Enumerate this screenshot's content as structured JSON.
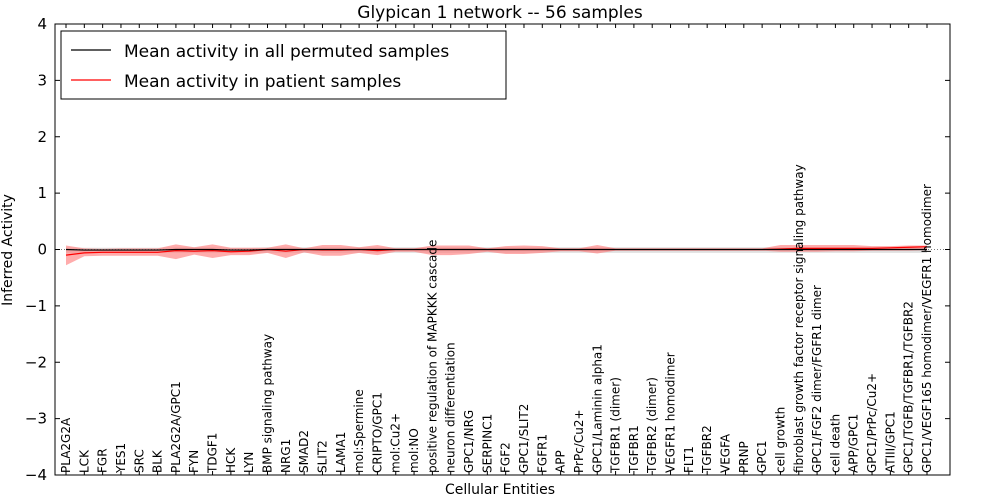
{
  "chart_data": {
    "type": "line",
    "title": "Glypican 1 network -- 56 samples",
    "xlabel": "Cellular Entities",
    "ylabel": "Inferred Activity",
    "ylim": [
      -4,
      4
    ],
    "yticks": [
      -4,
      -3,
      -2,
      -1,
      0,
      1,
      2,
      3,
      4
    ],
    "grid": false,
    "legend_position": "top-left",
    "categories": [
      "PLA2G2A",
      "LCK",
      "FGR",
      "YES1",
      "SRC",
      "BLK",
      "PLA2G2A/GPC1",
      "FYN",
      "TDGF1",
      "HCK",
      "LYN",
      "BMP signaling pathway",
      "NRG1",
      "SMAD2",
      "SLIT2",
      "LAMA1",
      "mol:Spermine",
      "CRIPTO/GPC1",
      "mol:Cu2+",
      "mol:NO",
      "positive regulation of MAPKKK cascade",
      "neuron differentiation",
      "GPC1/NRG",
      "SERPINC1",
      "FGF2",
      "GPC1/SLIT2",
      "FGFR1",
      "APP",
      "PrPc/Cu2+",
      "GPC1/Laminin alpha1",
      "TGFBR1 (dimer)",
      "TGFBR1",
      "TGFBR2 (dimer)",
      "VEGFR1 homodimer",
      "FLT1",
      "TGFBR2",
      "VEGFA",
      "PRNP",
      "GPC1",
      "cell growth",
      "fibroblast growth factor receptor signaling pathway",
      "GPC1/FGF2 dimer/FGFR1 dimer",
      "cell death",
      "APP/GPC1",
      "GPC1/PrPc/Cu2+",
      "ATIII/GPC1",
      "GPC1/TGFB/TGFBR1/TGFBR2",
      "GPC1/VEGF165 homodimer/VEGFR1 homodimer"
    ],
    "series": [
      {
        "name": "Mean activity in all permuted samples",
        "color": "#000000",
        "values": [
          0.0,
          -0.01,
          -0.01,
          -0.01,
          -0.01,
          -0.01,
          0.0,
          0.0,
          0.0,
          -0.01,
          -0.01,
          0.0,
          0.0,
          0.0,
          0.0,
          0.0,
          0.0,
          0.0,
          0.0,
          0.0,
          0.0,
          0.0,
          0.0,
          0.0,
          0.0,
          0.0,
          0.0,
          0.0,
          0.0,
          0.0,
          0.0,
          0.0,
          0.0,
          0.0,
          0.0,
          0.0,
          0.0,
          0.0,
          0.0,
          0.0,
          0.0,
          0.0,
          0.0,
          0.0,
          0.0,
          0.0,
          0.0,
          0.0
        ],
        "band_upper": [
          0.04,
          0.03,
          0.03,
          0.03,
          0.03,
          0.03,
          0.04,
          0.04,
          0.04,
          0.03,
          0.03,
          0.04,
          0.04,
          0.04,
          0.04,
          0.04,
          0.04,
          0.04,
          0.04,
          0.04,
          0.04,
          0.04,
          0.04,
          0.04,
          0.04,
          0.04,
          0.04,
          0.04,
          0.04,
          0.04,
          0.04,
          0.04,
          0.04,
          0.04,
          0.04,
          0.04,
          0.04,
          0.04,
          0.04,
          0.04,
          0.04,
          0.04,
          0.04,
          0.04,
          0.04,
          0.04,
          0.04,
          0.04
        ],
        "band_lower": [
          -0.06,
          -0.06,
          -0.06,
          -0.06,
          -0.06,
          -0.06,
          -0.06,
          -0.06,
          -0.06,
          -0.06,
          -0.06,
          -0.06,
          -0.06,
          -0.06,
          -0.06,
          -0.06,
          -0.06,
          -0.06,
          -0.06,
          -0.06,
          -0.06,
          -0.06,
          -0.06,
          -0.06,
          -0.06,
          -0.06,
          -0.06,
          -0.06,
          -0.06,
          -0.06,
          -0.06,
          -0.06,
          -0.06,
          -0.06,
          -0.06,
          -0.06,
          -0.06,
          -0.06,
          -0.06,
          -0.06,
          -0.06,
          -0.06,
          -0.06,
          -0.06,
          -0.06,
          -0.06,
          -0.06,
          -0.06
        ],
        "band_color": "#cccccc"
      },
      {
        "name": "Mean activity in patient samples",
        "color": "#ff0000",
        "values": [
          -0.1,
          -0.06,
          -0.05,
          -0.05,
          -0.05,
          -0.05,
          -0.02,
          -0.03,
          -0.02,
          -0.04,
          -0.03,
          0.0,
          -0.03,
          0.0,
          -0.01,
          -0.01,
          0.0,
          -0.02,
          0.0,
          0.0,
          0.0,
          0.0,
          0.0,
          0.0,
          0.0,
          0.0,
          0.0,
          0.0,
          0.0,
          0.0,
          0.0,
          0.0,
          0.0,
          0.0,
          0.0,
          0.0,
          0.0,
          0.0,
          0.0,
          0.01,
          0.02,
          0.02,
          0.02,
          0.02,
          0.02,
          0.03,
          0.04,
          0.05
        ],
        "band_upper": [
          0.07,
          0.02,
          0.01,
          0.02,
          0.02,
          0.02,
          0.09,
          0.04,
          0.09,
          0.03,
          0.03,
          0.03,
          0.09,
          0.02,
          0.08,
          0.08,
          0.04,
          0.08,
          0.02,
          0.02,
          0.07,
          0.07,
          0.07,
          0.02,
          0.06,
          0.07,
          0.06,
          0.02,
          0.02,
          0.08,
          0.02,
          0.02,
          0.02,
          0.02,
          0.02,
          0.02,
          0.02,
          0.02,
          0.02,
          0.08,
          0.08,
          0.08,
          0.08,
          0.08,
          0.06,
          0.06,
          0.07,
          0.07
        ],
        "band_lower": [
          -0.28,
          -0.12,
          -0.11,
          -0.11,
          -0.11,
          -0.11,
          -0.17,
          -0.09,
          -0.15,
          -0.1,
          -0.1,
          -0.06,
          -0.15,
          -0.05,
          -0.11,
          -0.11,
          -0.06,
          -0.1,
          -0.04,
          -0.04,
          -0.1,
          -0.1,
          -0.08,
          -0.04,
          -0.08,
          -0.08,
          -0.06,
          -0.03,
          -0.03,
          -0.07,
          -0.02,
          -0.02,
          -0.02,
          -0.02,
          -0.02,
          -0.02,
          -0.02,
          -0.02,
          -0.02,
          -0.04,
          -0.04,
          -0.04,
          -0.03,
          -0.03,
          -0.02,
          -0.02,
          -0.02,
          -0.01
        ],
        "band_color": "#ff7f7f"
      }
    ],
    "zero_line": {
      "value": 0,
      "color": "#808080",
      "style": "dotted"
    }
  }
}
